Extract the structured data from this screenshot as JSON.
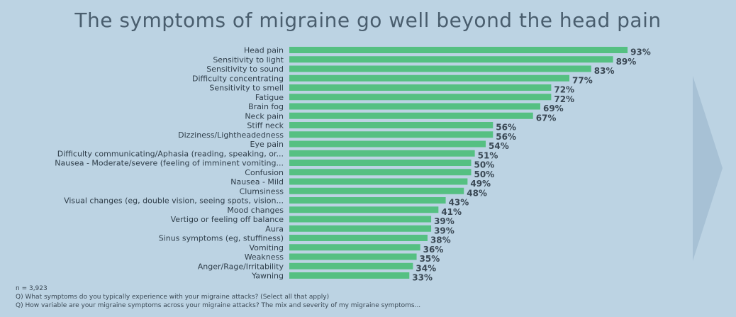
{
  "colors": {
    "background": "#bcd3e3",
    "bar": "#55c082",
    "chevron": "#a7c1d5",
    "title": "#4a5e6e"
  },
  "chart_data": {
    "type": "bar",
    "orientation": "horizontal",
    "title": "The symptoms of migraine go well beyond the head pain",
    "categories": [
      "Head pain",
      "Sensitivity to light",
      "Sensitivity to sound",
      "Difficulty concentrating",
      "Sensitivity to smell",
      "Fatigue",
      "Brain fog",
      "Neck pain",
      "Stiff neck",
      "Dizziness/Lightheadedness",
      "Eye pain",
      "Difficulty communicating/Aphasia (reading, speaking, or...",
      "Nausea - Moderate/severe (feeling of imminent vomiting...",
      "Confusion",
      "Nausea - Mild",
      "Clumsiness",
      "Visual changes  (eg, double vision, seeing spots, vision...",
      "Mood changes",
      "Vertigo or feeling off balance",
      "Aura",
      "Sinus symptoms (eg, stuffiness)",
      "Vomiting",
      "Weakness",
      "Anger/Rage/Irritability",
      "Yawning"
    ],
    "values": [
      93,
      89,
      83,
      77,
      72,
      72,
      69,
      67,
      56,
      56,
      54,
      51,
      50,
      50,
      49,
      48,
      43,
      41,
      39,
      39,
      38,
      36,
      35,
      34,
      33
    ],
    "value_suffix": "%",
    "xlim": [
      0,
      100
    ],
    "grid": false,
    "legend": "none"
  },
  "notes": [
    "n = 3,923",
    "Q) What symptoms do you typically experience with your migraine attacks? (Select all that apply)",
    "Q) How variable are your migraine symptoms across your migraine attacks? The mix and severity of my migraine symptoms..."
  ]
}
